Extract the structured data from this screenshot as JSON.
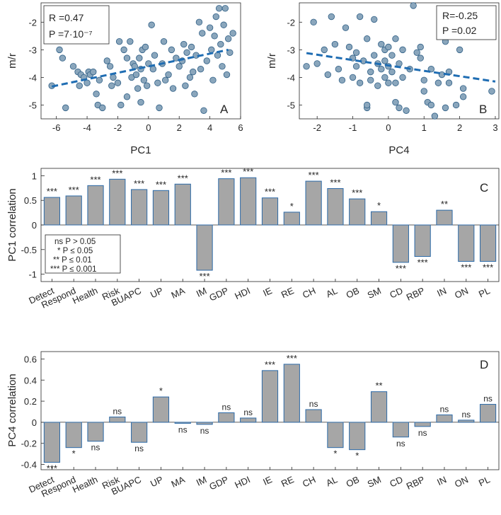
{
  "chart_data": [
    {
      "panel": "A",
      "type": "scatter",
      "xlabel": "PC1",
      "ylabel": "m/r",
      "xlim": [
        -7,
        6
      ],
      "ylim": [
        -5.5,
        -1.3
      ],
      "xticks": [
        "-6",
        "-4",
        "-2",
        "0",
        "2",
        "4",
        "6"
      ],
      "yticks": [
        "-5",
        "-4",
        "-3",
        "-2"
      ],
      "stats": [
        "R =0.47",
        "P =7·10⁻⁷"
      ],
      "fit": [
        [
          -6.3,
          -4.33
        ],
        [
          5.2,
          -3.0
        ]
      ],
      "points": [
        [
          -6.3,
          -4.3
        ],
        [
          -5.8,
          -3.0
        ],
        [
          -5.6,
          -3.3
        ],
        [
          -5.4,
          -5.1
        ],
        [
          -4.9,
          -3.6
        ],
        [
          -4.6,
          -3.8
        ],
        [
          -4.5,
          -4.3
        ],
        [
          -4.4,
          -3.9
        ],
        [
          -4.2,
          -4.0
        ],
        [
          -4.0,
          -4.2
        ],
        [
          -3.9,
          -3.8
        ],
        [
          -3.8,
          -3.9
        ],
        [
          -3.6,
          -3.8
        ],
        [
          -3.4,
          -4.6
        ],
        [
          -3.3,
          -5.0
        ],
        [
          -3.2,
          -4.1
        ],
        [
          -3.0,
          -5.1
        ],
        [
          -2.7,
          -3.4
        ],
        [
          -2.5,
          -3.6
        ],
        [
          -2.4,
          -4.3
        ],
        [
          -2.3,
          -4.0
        ],
        [
          -2.0,
          -4.2
        ],
        [
          -1.9,
          -2.7
        ],
        [
          -1.8,
          -5.0
        ],
        [
          -1.6,
          -3.0
        ],
        [
          -1.4,
          -3.3
        ],
        [
          -1.4,
          -4.7
        ],
        [
          -1.2,
          -2.7
        ],
        [
          -1.1,
          -4.0
        ],
        [
          -1.0,
          -3.5
        ],
        [
          -0.9,
          -3.6
        ],
        [
          -0.8,
          -3.9
        ],
        [
          -0.7,
          -4.4
        ],
        [
          -0.6,
          -3.3
        ],
        [
          -0.5,
          -3.7
        ],
        [
          -0.5,
          -4.9
        ],
        [
          -0.4,
          -3.0
        ],
        [
          -0.3,
          -4.1
        ],
        [
          -0.2,
          -2.9
        ],
        [
          -0.1,
          -4.3
        ],
        [
          0.0,
          -3.5
        ],
        [
          0.2,
          -2.1
        ],
        [
          0.3,
          -3.7
        ],
        [
          0.4,
          -3.2
        ],
        [
          0.6,
          -4.2
        ],
        [
          0.7,
          -5.1
        ],
        [
          0.9,
          -3.5
        ],
        [
          1.0,
          -2.7
        ],
        [
          1.1,
          -4.1
        ],
        [
          1.3,
          -3.9
        ],
        [
          1.5,
          -3.0
        ],
        [
          1.6,
          -4.4
        ],
        [
          1.8,
          -3.3
        ],
        [
          2.0,
          -3.6
        ],
        [
          2.2,
          -3.4
        ],
        [
          2.3,
          -2.8
        ],
        [
          2.4,
          -4.3
        ],
        [
          2.5,
          -3.1
        ],
        [
          2.7,
          -4.0
        ],
        [
          2.8,
          -2.9
        ],
        [
          2.9,
          -3.8
        ],
        [
          3.0,
          -4.6
        ],
        [
          3.1,
          -3.2
        ],
        [
          3.3,
          -2.0
        ],
        [
          3.4,
          -3.7
        ],
        [
          3.5,
          -2.4
        ],
        [
          3.6,
          -5.2
        ],
        [
          3.8,
          -3.4
        ],
        [
          4.0,
          -2.2
        ],
        [
          4.1,
          -3.0
        ],
        [
          4.2,
          -4.1
        ],
        [
          4.3,
          -2.5
        ],
        [
          4.4,
          -1.8
        ],
        [
          4.5,
          -3.2
        ],
        [
          4.6,
          -1.5
        ],
        [
          4.7,
          -2.8
        ],
        [
          4.8,
          -3.6
        ],
        [
          4.9,
          -2.1
        ],
        [
          5.0,
          -1.5
        ],
        [
          5.1,
          -3.9
        ],
        [
          5.2,
          -2.6
        ],
        [
          5.3,
          -3.1
        ],
        [
          5.5,
          -2.4
        ]
      ]
    },
    {
      "panel": "B",
      "type": "scatter",
      "xlabel": "PC4",
      "ylabel": "m/r",
      "xlim": [
        -2.5,
        3.1
      ],
      "ylim": [
        -5.5,
        -1.3
      ],
      "xticks": [
        "-2",
        "-1",
        "0",
        "1",
        "2",
        "3"
      ],
      "yticks": [
        "-5",
        "-4",
        "-3",
        "-2"
      ],
      "stats": [
        "R=-0.25",
        "P =0.02"
      ],
      "fit": [
        [
          -2.3,
          -3.12
        ],
        [
          3.0,
          -4.15
        ]
      ],
      "points": [
        [
          -2.3,
          -3.6
        ],
        [
          -2.1,
          -2.0
        ],
        [
          -2.0,
          -3.5
        ],
        [
          -1.8,
          -3.0
        ],
        [
          -1.7,
          -3.9
        ],
        [
          -1.6,
          -1.8
        ],
        [
          -1.5,
          -2.8
        ],
        [
          -1.4,
          -3.7
        ],
        [
          -1.3,
          -4.1
        ],
        [
          -1.2,
          -2.2
        ],
        [
          -1.1,
          -2.9
        ],
        [
          -1.0,
          -3.3
        ],
        [
          -1.0,
          -4.0
        ],
        [
          -0.9,
          -3.1
        ],
        [
          -0.9,
          -3.6
        ],
        [
          -0.8,
          -4.2
        ],
        [
          -0.8,
          -1.8
        ],
        [
          -0.7,
          -3.4
        ],
        [
          -0.6,
          -2.6
        ],
        [
          -0.6,
          -5.1
        ],
        [
          -0.6,
          -5.0
        ],
        [
          -0.5,
          -3.8
        ],
        [
          -0.5,
          -4.1
        ],
        [
          -0.4,
          -3.2
        ],
        [
          -0.4,
          -1.9
        ],
        [
          -0.3,
          -3.5
        ],
        [
          -0.3,
          -4.3
        ],
        [
          -0.2,
          -3.7
        ],
        [
          -0.2,
          -2.8
        ],
        [
          -0.1,
          -4.0
        ],
        [
          -0.1,
          -3.4
        ],
        [
          -0.1,
          -3.0
        ],
        [
          0.0,
          -2.9
        ],
        [
          0.0,
          -3.6
        ],
        [
          0.0,
          -4.2
        ],
        [
          0.1,
          -3.2
        ],
        [
          0.1,
          -3.8
        ],
        [
          0.2,
          -2.6
        ],
        [
          0.2,
          -4.2
        ],
        [
          0.2,
          -4.9
        ],
        [
          0.3,
          -3.5
        ],
        [
          0.3,
          -5.1
        ],
        [
          0.4,
          -3.0
        ],
        [
          0.4,
          -4.0
        ],
        [
          0.5,
          -5.2
        ],
        [
          0.6,
          -3.7
        ],
        [
          0.7,
          -1.4
        ],
        [
          0.8,
          -3.1
        ],
        [
          0.9,
          -2.9
        ],
        [
          0.9,
          -3.3
        ],
        [
          1.0,
          -4.1
        ],
        [
          1.0,
          -4.5
        ],
        [
          1.1,
          -4.9
        ],
        [
          1.2,
          -3.7
        ],
        [
          1.2,
          -5.0
        ],
        [
          1.3,
          -5.4
        ],
        [
          1.4,
          -4.2
        ],
        [
          1.5,
          -3.9
        ],
        [
          1.6,
          -5.1
        ],
        [
          1.6,
          -2.7
        ],
        [
          1.7,
          -4.2
        ],
        [
          1.7,
          -3.8
        ],
        [
          1.9,
          -5.0
        ],
        [
          2.0,
          -3.0
        ],
        [
          2.1,
          -4.4
        ],
        [
          2.1,
          -4.7
        ],
        [
          2.9,
          -4.5
        ]
      ]
    },
    {
      "panel": "C",
      "type": "bar",
      "ylabel": "PC1 correlation",
      "ylim": [
        -1.15,
        1.15
      ],
      "yticks": [
        "-1",
        "-0.5",
        "0",
        "0.5",
        "1"
      ],
      "categories": [
        "Detect",
        "Respond",
        "Health",
        "Risk",
        "BUAPC",
        "UP",
        "MA",
        "IM",
        "GDP",
        "HDI",
        "IE",
        "RE",
        "CH",
        "AL",
        "OB",
        "SM",
        "CD",
        "RBP",
        "IN",
        "ON",
        "PL"
      ],
      "values": [
        0.56,
        0.59,
        0.8,
        0.93,
        0.72,
        0.7,
        0.83,
        -0.92,
        0.94,
        0.96,
        0.55,
        0.26,
        0.89,
        0.74,
        0.53,
        0.27,
        -0.76,
        -0.64,
        0.3,
        -0.74,
        -0.74
      ],
      "significance": [
        "***",
        "***",
        "***",
        "***",
        "***",
        "***",
        "***",
        "***",
        "***",
        "***",
        "***",
        "*",
        "***",
        "***",
        "***",
        "*",
        "***",
        "***",
        "**",
        "***",
        "***"
      ],
      "legend": [
        "ns P > 0.05",
        "*  P ≤ 0.05",
        "**  P ≤ 0.01",
        "*** P ≤ 0.001"
      ]
    },
    {
      "panel": "D",
      "type": "bar",
      "ylabel": "PC4 correlation",
      "ylim": [
        -0.45,
        0.67
      ],
      "yticks": [
        "-0.4",
        "-0.2",
        "0",
        "0.2",
        "0.4",
        "0.6"
      ],
      "categories": [
        "Detect",
        "Respond",
        "Health",
        "Risk",
        "BUAPC",
        "UP",
        "MA",
        "IM",
        "GDP",
        "HDI",
        "IE",
        "RE",
        "CH",
        "AL",
        "OB",
        "SM",
        "CD",
        "RBP",
        "IN",
        "ON",
        "PL"
      ],
      "values": [
        -0.38,
        -0.24,
        -0.18,
        0.05,
        -0.19,
        0.24,
        -0.01,
        -0.02,
        0.09,
        0.04,
        0.49,
        0.55,
        0.12,
        -0.24,
        -0.26,
        0.29,
        -0.14,
        -0.04,
        0.07,
        0.02,
        0.17
      ],
      "significance": [
        "***",
        "*",
        "ns",
        "ns",
        "ns",
        "*",
        "ns",
        "ns",
        "ns",
        "ns",
        "***",
        "***",
        "ns",
        "*",
        "*",
        "**",
        "ns",
        "ns",
        "ns",
        "ns",
        "ns"
      ]
    }
  ]
}
